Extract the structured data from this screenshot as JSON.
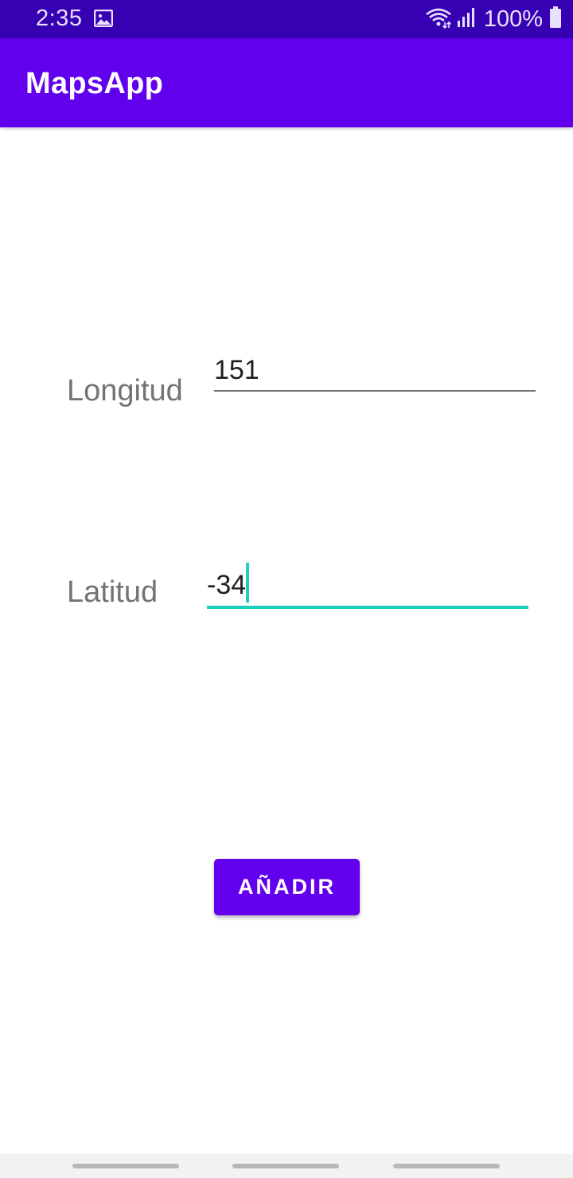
{
  "status_bar": {
    "time": "2:35",
    "icons": [
      "image-icon",
      "wifi-icon",
      "signal-icon",
      "battery-icon"
    ],
    "battery_text": "100%"
  },
  "app_bar": {
    "title": "MapsApp",
    "color": "#6200ee"
  },
  "form": {
    "longitude": {
      "label": "Longitud",
      "value": "151"
    },
    "latitude": {
      "label": "Latitud",
      "value": "-34",
      "focused": true,
      "accent_color": "#1ccfbf"
    },
    "add_button": {
      "label": "AÑADIR",
      "color": "#6200ee"
    }
  },
  "navigation_bar": {
    "items": [
      "recent-apps",
      "home",
      "back"
    ]
  }
}
